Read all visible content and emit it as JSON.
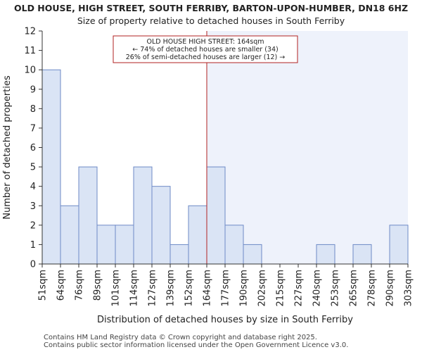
{
  "title_line1": "OLD HOUSE, HIGH STREET, SOUTH FERRIBY, BARTON-UPON-HUMBER, DN18 6HZ",
  "title_line2": "Size of property relative to detached houses in South Ferriby",
  "footer_line1": "Contains HM Land Registry data © Crown copyright and database right 2025.",
  "footer_line2": "Contains public sector information licensed under the Open Government Licence v3.0.",
  "colors": {
    "bar_fill": "#dae4f5",
    "bar_stroke": "#6e8ac6",
    "highlight_bg": "#eef2fb",
    "marker_line": "#b22222",
    "annotation_border": "#b22222"
  },
  "chart_data": {
    "type": "bar",
    "xlabel": "Distribution of detached houses by size in South Ferriby",
    "ylabel": "Number of detached properties",
    "ylim": [
      0,
      12
    ],
    "yticks": [
      0,
      1,
      2,
      3,
      4,
      5,
      6,
      7,
      8,
      9,
      10,
      11,
      12
    ],
    "bin_edges": [
      "51sqm",
      "64sqm",
      "76sqm",
      "89sqm",
      "101sqm",
      "114sqm",
      "127sqm",
      "139sqm",
      "152sqm",
      "164sqm",
      "177sqm",
      "190sqm",
      "202sqm",
      "215sqm",
      "227sqm",
      "240sqm",
      "253sqm",
      "265sqm",
      "278sqm",
      "290sqm",
      "303sqm"
    ],
    "values": [
      10,
      3,
      5,
      2,
      2,
      5,
      4,
      1,
      3,
      5,
      2,
      1,
      0,
      0,
      0,
      1,
      0,
      1,
      0,
      2
    ],
    "marker_value": "164sqm",
    "marker_edge_index": 9,
    "annotation": {
      "line1": "OLD HOUSE HIGH STREET: 164sqm",
      "line2": "← 74% of detached houses are smaller (34)",
      "line3": "26% of semi-detached houses are larger (12) →"
    }
  }
}
